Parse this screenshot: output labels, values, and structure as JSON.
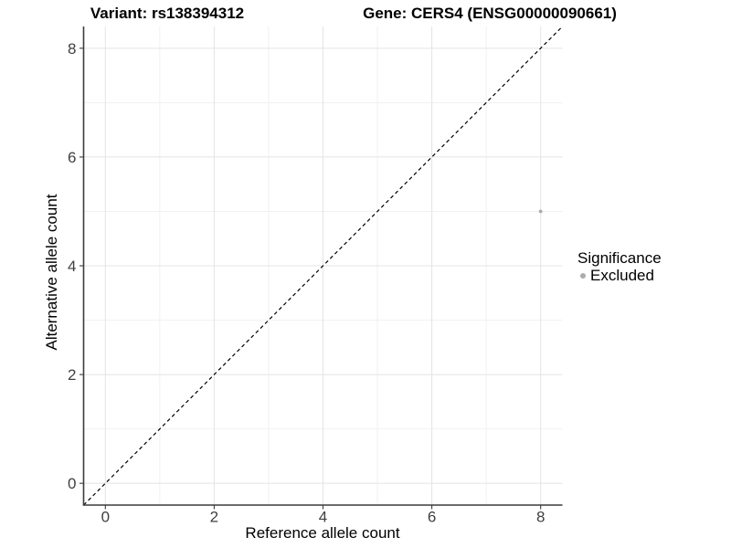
{
  "titles": {
    "left": "Variant: rs138394312",
    "right": "Gene: CERS4 (ENSG00000090661)"
  },
  "chart_data": {
    "type": "scatter",
    "xlabel": "Reference allele count",
    "ylabel": "Alternative allele count",
    "xlim": [
      -0.4,
      8.4
    ],
    "ylim": [
      -0.4,
      8.4
    ],
    "x_breaks": [
      0,
      2,
      4,
      6,
      8
    ],
    "y_breaks": [
      0,
      2,
      4,
      6,
      8
    ],
    "x_minor_breaks": [
      1,
      3,
      5,
      7
    ],
    "y_minor_breaks": [
      1,
      3,
      5,
      7
    ],
    "grid": true,
    "points": [
      {
        "x": 8,
        "y": 5,
        "series": "Excluded"
      }
    ],
    "reference_line": {
      "kind": "identity",
      "style": "dashed"
    },
    "legend": {
      "title": "Significance",
      "position": "right",
      "items": [
        {
          "label": "Excluded",
          "color": "#ACACAC"
        }
      ]
    }
  },
  "colors": {
    "background": "#FFFFFF",
    "axis_line": "#3C3C3C",
    "tick_mark": "#3C3C3C",
    "tick_label": "#404040",
    "grid_major": "#E4E4E4",
    "grid_minor": "#F1F1F1",
    "identity_line": "#000000",
    "point": "#ACACAC",
    "text": "#000000"
  }
}
